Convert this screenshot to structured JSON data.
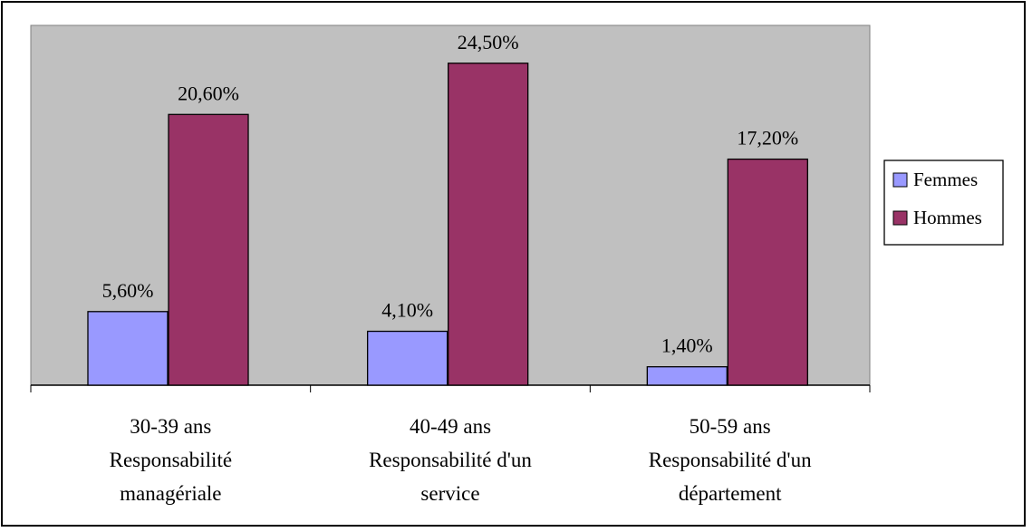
{
  "chart_data": {
    "type": "bar",
    "categories": [
      [
        "30-39 ans",
        "Responsabilité",
        "managériale"
      ],
      [
        "40-49 ans",
        "Responsabilité d'un",
        "service"
      ],
      [
        "50-59 ans",
        "Responsabilité d'un",
        "département"
      ]
    ],
    "series": [
      {
        "name": "Femmes",
        "values": [
          5.6,
          4.1,
          1.4
        ],
        "labels": [
          "5,60%",
          "4,10%",
          "1,40%"
        ],
        "color": "#9999ff"
      },
      {
        "name": "Hommes",
        "values": [
          20.6,
          24.5,
          17.2
        ],
        "labels": [
          "20,60%",
          "24,50%",
          "17,20%"
        ],
        "color": "#993366"
      }
    ],
    "ylim": [
      0,
      26
    ],
    "grid": false,
    "plot_background": "#c0c0c0",
    "legend": "right"
  }
}
